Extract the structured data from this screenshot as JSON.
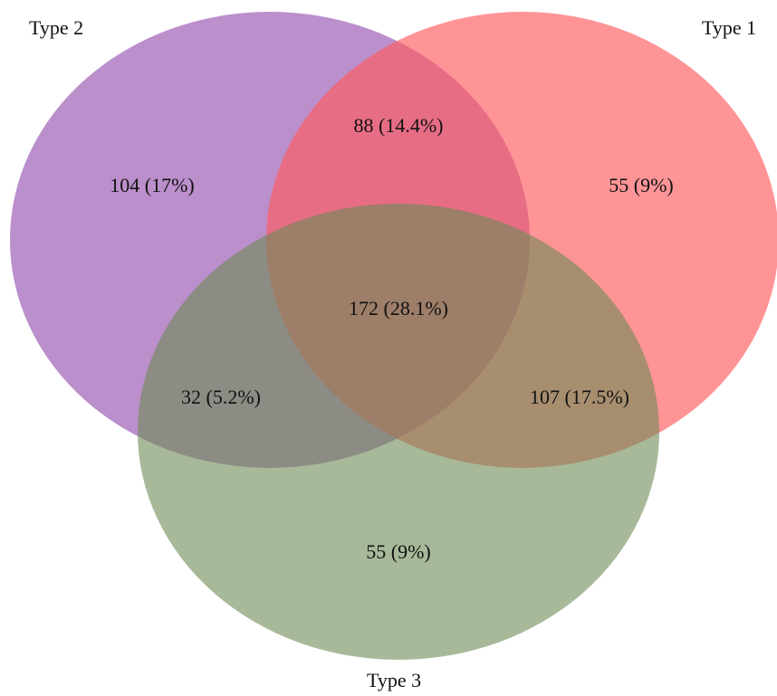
{
  "sets": [
    {
      "id": "type1",
      "label": "Type 1",
      "color": "#ff5a5f"
    },
    {
      "id": "type2",
      "label": "Type 2",
      "color": "#8e44a8"
    },
    {
      "id": "type3",
      "label": "Type 3",
      "color": "#6d8a55"
    }
  ],
  "regions": {
    "type2_only": {
      "count": 104,
      "text": "104 (17%)"
    },
    "type1_type2": {
      "count": 88,
      "text": "88 (14.4%)"
    },
    "type1_only": {
      "count": 55,
      "text": "55 (9%)"
    },
    "all_three": {
      "count": 172,
      "text": "172 (28.1%)"
    },
    "type2_type3": {
      "count": 32,
      "text": "32 (5.2%)"
    },
    "type1_type3": {
      "count": 107,
      "text": "107 (17.5%)"
    },
    "type3_only": {
      "count": 55,
      "text": "55 (9%)"
    }
  }
}
